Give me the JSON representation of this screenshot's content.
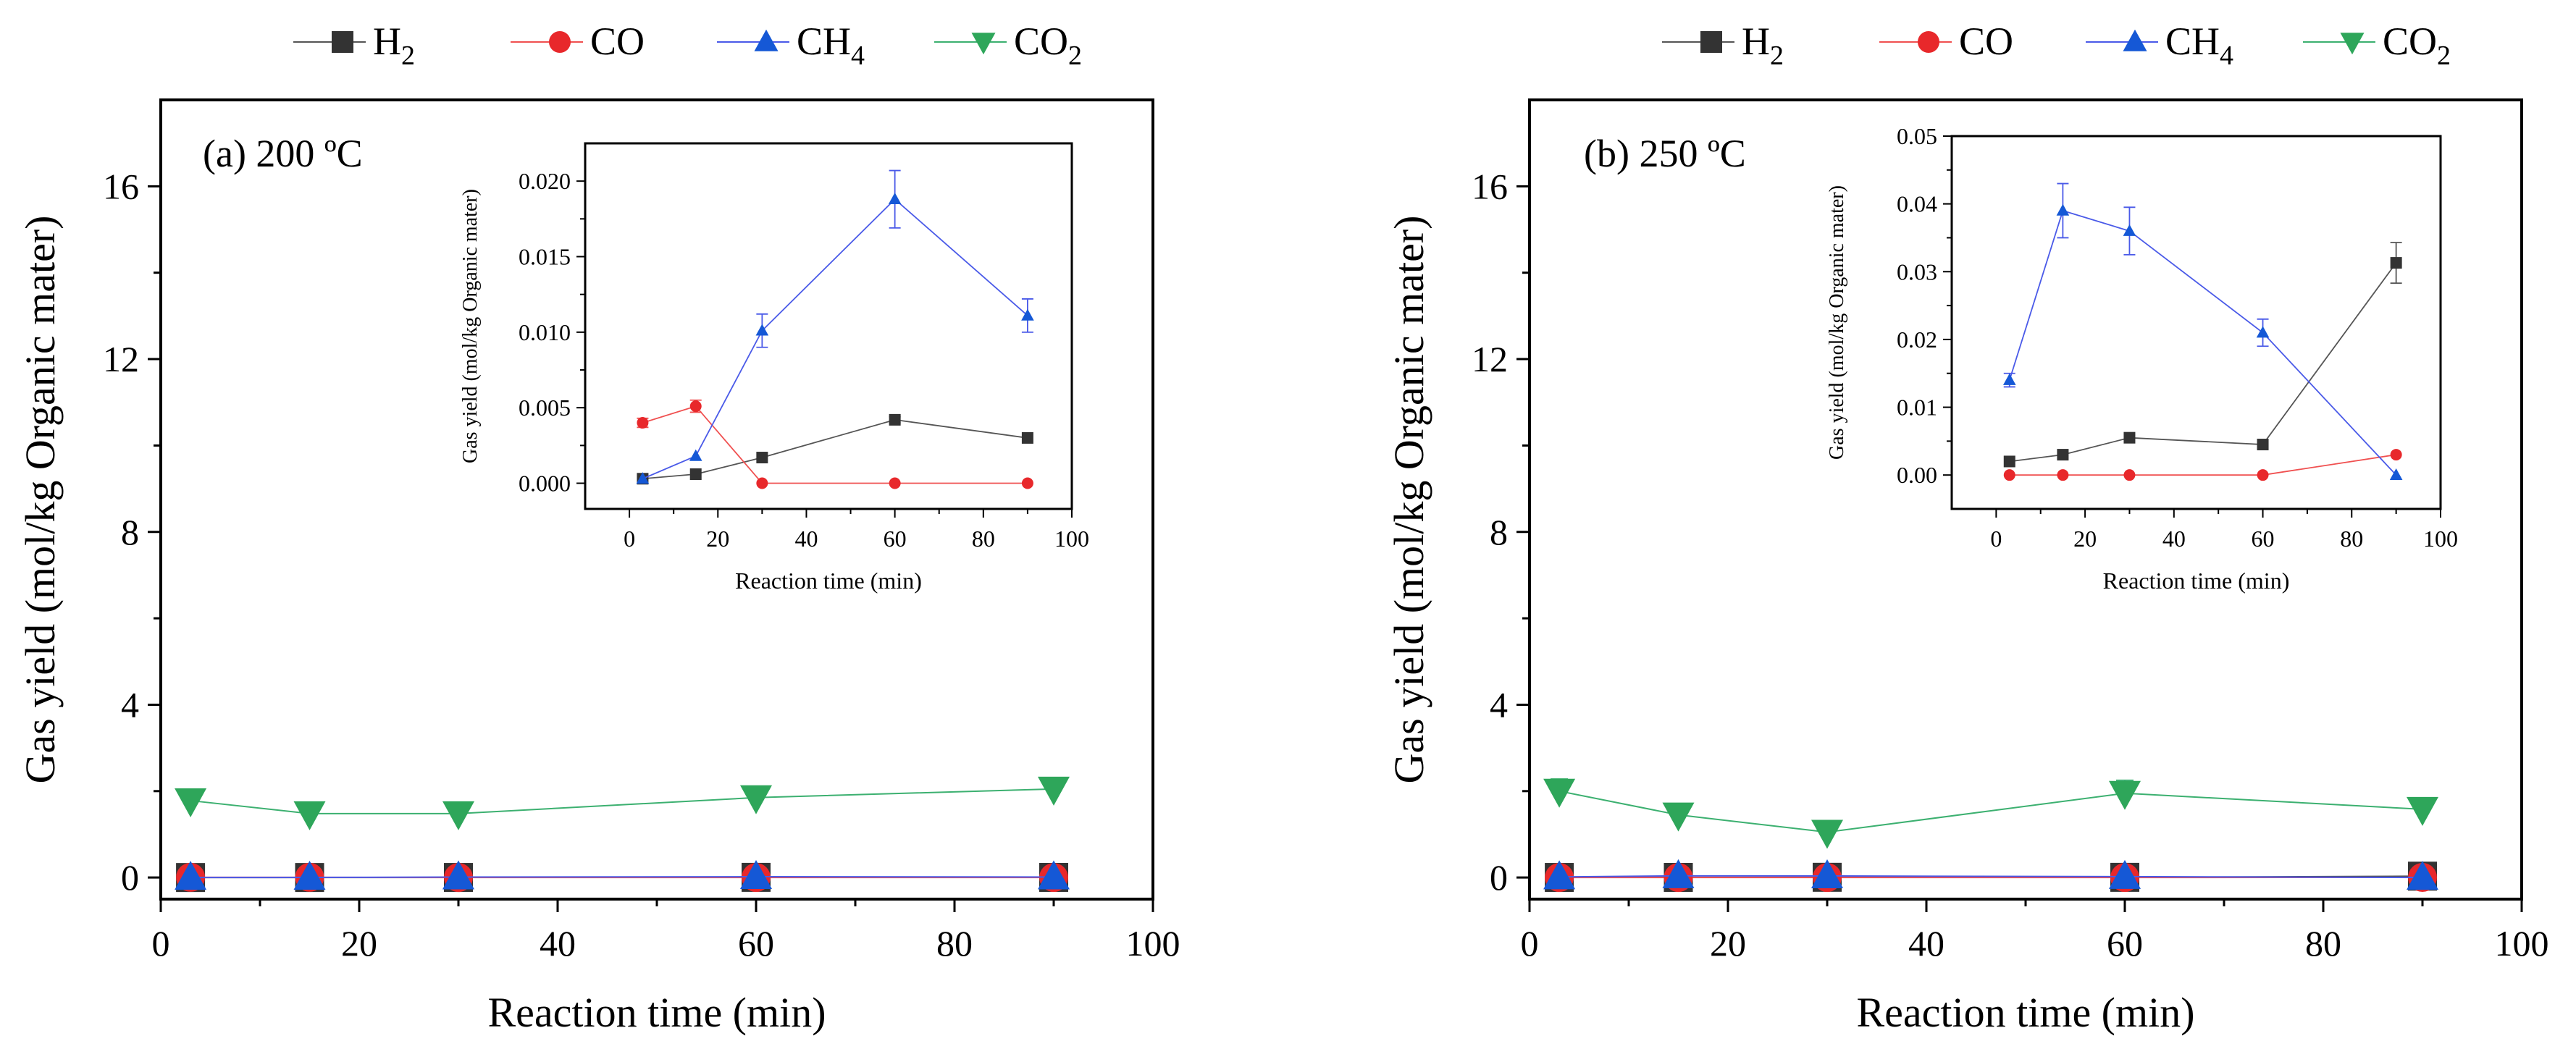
{
  "legend": {
    "items": [
      {
        "label": "H",
        "sub": "2",
        "color": "#333333",
        "marker": "square"
      },
      {
        "label": "CO",
        "sub": "",
        "color": "#e8282b",
        "marker": "circle"
      },
      {
        "label": "CH",
        "sub": "4",
        "color": "#1558d6",
        "marker": "triangle-up"
      },
      {
        "label": "CO",
        "sub": "2",
        "color": "#2ea65a",
        "marker": "triangle-down"
      }
    ]
  },
  "line_colors": {
    "H2": "#555555",
    "CO": "#f05050",
    "CH4": "#4a5ae8",
    "CO2": "#3cb070"
  },
  "chart_data": [
    {
      "id": "panel-a",
      "type": "line",
      "annotation": "(a) 200 ºC",
      "xlabel": "Reaction time (min)",
      "ylabel": "Gas yield (mol/kg Organic mater)",
      "xlim": [
        0,
        100
      ],
      "ylim": [
        -0.5,
        18
      ],
      "xticks": [
        0,
        20,
        40,
        60,
        80,
        100
      ],
      "yticks": [
        0,
        4,
        8,
        12,
        16
      ],
      "x": [
        3,
        15,
        30,
        60,
        90
      ],
      "series": [
        {
          "key": "H2",
          "name": "H2",
          "values": [
            0.0003,
            0.0006,
            0.0017,
            0.0042,
            0.003
          ]
        },
        {
          "key": "CO",
          "name": "CO",
          "values": [
            0.004,
            0.0051,
            0,
            0,
            0
          ]
        },
        {
          "key": "CH4",
          "name": "CH4",
          "values": [
            0.0003,
            0.0018,
            0.0101,
            0.0188,
            0.0111
          ]
        },
        {
          "key": "CO2",
          "name": "CO2",
          "values": [
            1.78,
            1.48,
            1.48,
            1.85,
            2.05
          ],
          "errors": [
            0.05,
            0.05,
            0.05,
            0.05,
            0.05
          ]
        }
      ],
      "inset": {
        "xlabel": "Reaction time (min)",
        "ylabel": "Gas yield (mol/kg Organic mater)",
        "xlim": [
          -10,
          100
        ],
        "ylim": [
          -0.0017,
          0.0225
        ],
        "xticks": [
          0,
          20,
          40,
          60,
          80,
          100
        ],
        "yticks": [
          0,
          0.005,
          0.01,
          0.015,
          0.02
        ],
        "ytick_labels": [
          "0.000",
          "0.005",
          "0.010",
          "0.015",
          "0.020"
        ],
        "x": [
          3,
          15,
          30,
          60,
          90
        ],
        "series": [
          {
            "key": "H2",
            "name": "H2",
            "values": [
              0.0003,
              0.0006,
              0.0017,
              0.0042,
              0.003
            ],
            "errors": [
              0,
              0,
              0,
              0.0002,
              0
            ]
          },
          {
            "key": "CO",
            "name": "CO",
            "values": [
              0.004,
              0.0051,
              0,
              0,
              0
            ],
            "errors": [
              0.0003,
              0.0004,
              0,
              0,
              0
            ]
          },
          {
            "key": "CH4",
            "name": "CH4",
            "values": [
              0.0003,
              0.0018,
              0.0101,
              0.0188,
              0.0111
            ],
            "errors": [
              0,
              0,
              0.0011,
              0.0019,
              0.0011
            ]
          }
        ]
      }
    },
    {
      "id": "panel-b",
      "type": "line",
      "annotation": "(b) 250 ºC",
      "xlabel": "Reaction time (min)",
      "ylabel": "Gas yield (mol/kg Organic mater)",
      "xlim": [
        0,
        100
      ],
      "ylim": [
        -0.5,
        18
      ],
      "xticks": [
        0,
        20,
        40,
        60,
        80,
        100
      ],
      "yticks": [
        0,
        4,
        8,
        12,
        16
      ],
      "x": [
        3,
        15,
        30,
        60,
        90
      ],
      "series": [
        {
          "key": "H2",
          "name": "H2",
          "values": [
            0.002,
            0.003,
            0.0055,
            0.0045,
            0.0313
          ]
        },
        {
          "key": "CO",
          "name": "CO",
          "values": [
            0,
            0,
            0,
            0,
            0.003
          ]
        },
        {
          "key": "CH4",
          "name": "CH4",
          "values": [
            0.014,
            0.039,
            0.036,
            0.021,
            0
          ]
        },
        {
          "key": "CO2",
          "name": "CO2",
          "values": [
            2.0,
            1.45,
            1.05,
            1.95,
            1.58
          ],
          "errors": [
            0.28,
            0.08,
            0.1,
            0.3,
            0.08
          ]
        }
      ],
      "inset": {
        "xlabel": "Reaction time (min)",
        "ylabel": "Gas yield (mol/kg Organic mater)",
        "xlim": [
          -10,
          100
        ],
        "ylim": [
          -0.005,
          0.05
        ],
        "xticks": [
          0,
          20,
          40,
          60,
          80,
          100
        ],
        "yticks": [
          0,
          0.01,
          0.02,
          0.03,
          0.04,
          0.05
        ],
        "ytick_labels": [
          "0.00",
          "0.01",
          "0.02",
          "0.03",
          "0.04",
          "0.05"
        ],
        "x": [
          3,
          15,
          30,
          60,
          90
        ],
        "series": [
          {
            "key": "H2",
            "name": "H2",
            "values": [
              0.002,
              0.003,
              0.0055,
              0.0045,
              0.0313
            ],
            "errors": [
              0,
              0,
              0,
              0,
              0.003
            ]
          },
          {
            "key": "CO",
            "name": "CO",
            "values": [
              0,
              0,
              0,
              0,
              0.003
            ],
            "errors": [
              0,
              0,
              0,
              0,
              0
            ]
          },
          {
            "key": "CH4",
            "name": "CH4",
            "values": [
              0.014,
              0.039,
              0.036,
              0.021,
              0
            ],
            "errors": [
              0.001,
              0.004,
              0.0035,
              0.002,
              0
            ]
          }
        ]
      }
    }
  ]
}
